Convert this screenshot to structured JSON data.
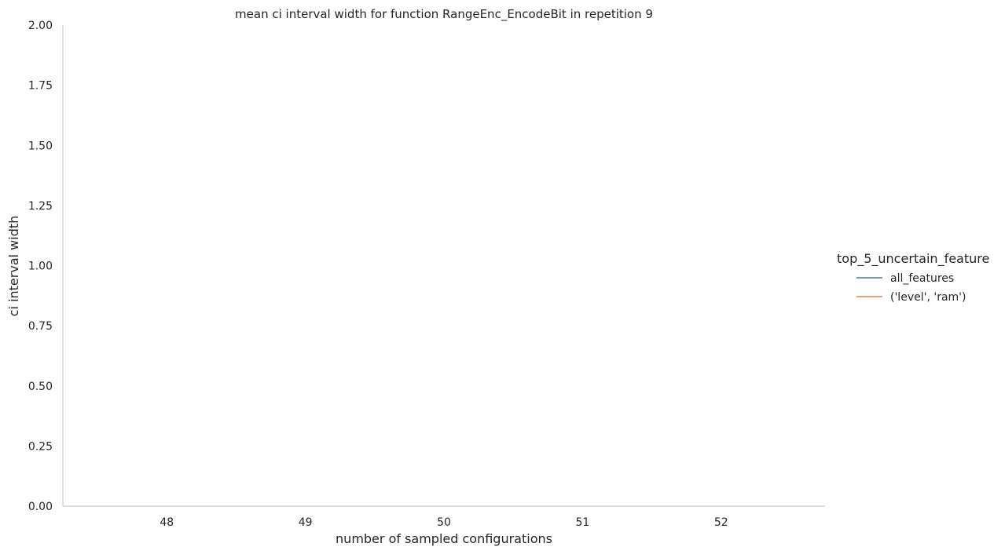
{
  "chart_data": {
    "type": "line",
    "title": "mean ci interval width for function RangeEnc_EncodeBit in repetition 9",
    "xlabel": "number of sampled configurations",
    "ylabel": "ci interval width",
    "x_ticks": [
      48,
      49,
      50,
      51,
      52
    ],
    "y_ticks": [
      "0.00",
      "0.25",
      "0.50",
      "0.75",
      "1.00",
      "1.25",
      "1.50",
      "1.75",
      "2.00"
    ],
    "xlim": [
      47.25,
      52.75
    ],
    "ylim": [
      0,
      2
    ],
    "grid": false,
    "legend": {
      "title": "top_5_uncertain_feature",
      "placement": "right",
      "entries": [
        {
          "name": "all_features",
          "color": "#4c72b0"
        },
        {
          "name": "('level', 'ram')",
          "color": "#dd8452"
        }
      ]
    },
    "series": [
      {
        "name": "all_features",
        "color": "#4c72b0",
        "x": [],
        "values": []
      },
      {
        "name": "('level', 'ram')",
        "color": "#dd8452",
        "x": [],
        "values": []
      }
    ]
  }
}
